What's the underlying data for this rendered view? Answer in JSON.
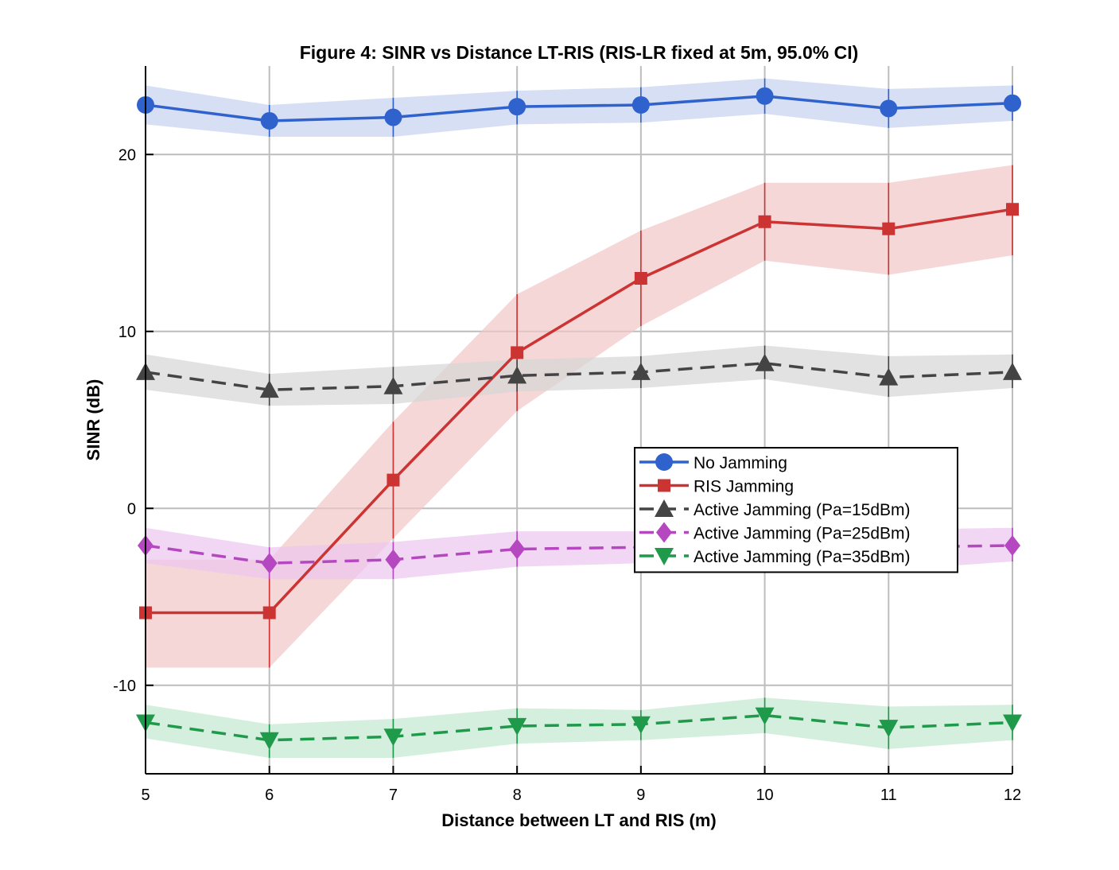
{
  "chart_data": {
    "type": "line",
    "title": "Figure 4: SINR vs Distance LT-RIS (RIS-LR fixed at 5m, 95.0% CI)",
    "xlabel": "Distance between LT and RIS (m)",
    "ylabel": "SINR (dB)",
    "x": [
      5,
      6,
      7,
      8,
      9,
      10,
      11,
      12
    ],
    "xlim": [
      5,
      12
    ],
    "ylim": [
      -15,
      25
    ],
    "xticks": [
      "5",
      "6",
      "7",
      "8",
      "9",
      "10",
      "11",
      "12"
    ],
    "yticks": [
      -10,
      0,
      10,
      20
    ],
    "ytick_labels": [
      "-10",
      "0",
      "10",
      "20"
    ],
    "grid": true,
    "legend_position": "center-right",
    "series": [
      {
        "name": "No Jamming",
        "color": "#2f62cc",
        "band_color": "#c5d2f0",
        "line_style": "solid",
        "marker": "circle",
        "values": [
          22.8,
          21.9,
          22.1,
          22.7,
          22.8,
          23.3,
          22.6,
          22.9
        ],
        "ci_lower": [
          21.7,
          21.0,
          21.0,
          21.7,
          21.8,
          22.3,
          21.5,
          21.9
        ],
        "ci_upper": [
          23.9,
          22.8,
          23.2,
          23.6,
          23.8,
          24.3,
          23.7,
          23.9
        ]
      },
      {
        "name": "RIS Jamming",
        "color": "#cc3333",
        "band_color": "#f1c6c6",
        "line_style": "solid",
        "marker": "square",
        "values": [
          -5.9,
          -5.9,
          1.6,
          8.8,
          13.0,
          16.2,
          15.8,
          16.9
        ],
        "ci_lower": [
          -9.0,
          -9.0,
          -1.7,
          5.5,
          10.3,
          14.0,
          13.2,
          14.3
        ],
        "ci_upper": [
          -2.9,
          -2.9,
          4.9,
          12.1,
          15.7,
          18.4,
          18.4,
          19.4
        ]
      },
      {
        "name": "Active Jamming (Pa=15dBm)",
        "color": "#444444",
        "band_color": "#d6d6d6",
        "line_style": "dashed",
        "marker": "triangle-up",
        "values": [
          7.7,
          6.7,
          6.9,
          7.5,
          7.7,
          8.2,
          7.4,
          7.7
        ],
        "ci_lower": [
          6.7,
          5.8,
          5.9,
          6.6,
          6.8,
          7.3,
          6.3,
          6.8
        ],
        "ci_upper": [
          8.7,
          7.6,
          8.0,
          8.4,
          8.6,
          9.2,
          8.6,
          8.7
        ]
      },
      {
        "name": "Active Jamming (Pa=25dBm)",
        "color": "#b548c1",
        "band_color": "#ecc6f0",
        "line_style": "dashed",
        "marker": "diamond",
        "values": [
          -2.1,
          -3.1,
          -2.9,
          -2.3,
          -2.2,
          -2.2,
          -2.2,
          -2.1
        ],
        "ci_lower": [
          -3.1,
          -4.0,
          -4.0,
          -3.3,
          -3.1,
          -3.1,
          -3.5,
          -3.0
        ],
        "ci_upper": [
          -1.1,
          -2.2,
          -1.9,
          -1.3,
          -1.3,
          -1.3,
          -1.2,
          -1.1
        ]
      },
      {
        "name": "Active Jamming (Pa=35dBm)",
        "color": "#1e9a4a",
        "band_color": "#c2e8d0",
        "line_style": "dashed",
        "marker": "triangle-down",
        "values": [
          -12.1,
          -13.1,
          -12.9,
          -12.3,
          -12.2,
          -11.7,
          -12.4,
          -12.1
        ],
        "ci_lower": [
          -13.0,
          -14.1,
          -14.1,
          -13.3,
          -13.1,
          -12.7,
          -13.6,
          -13.1
        ],
        "ci_upper": [
          -11.1,
          -12.2,
          -11.9,
          -11.3,
          -11.4,
          -10.7,
          -11.2,
          -11.1
        ]
      }
    ]
  }
}
